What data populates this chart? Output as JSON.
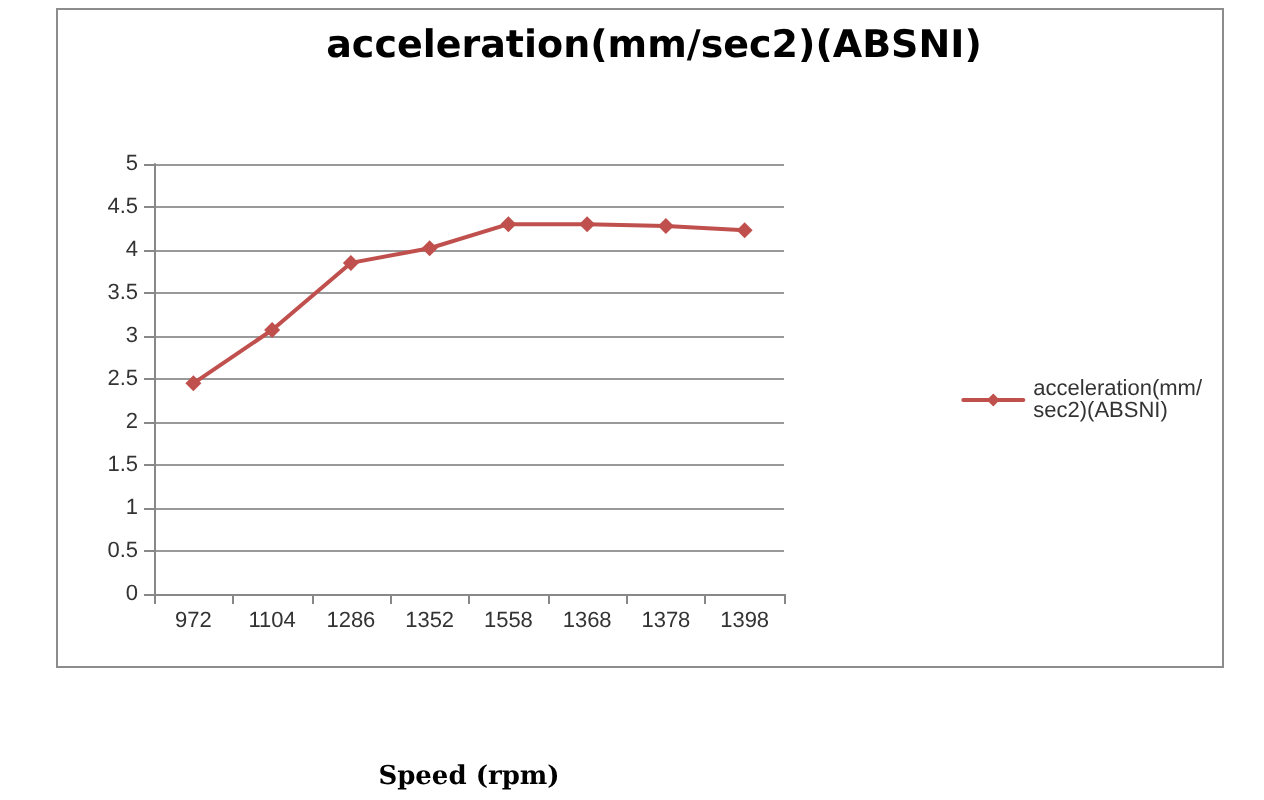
{
  "chart_data": {
    "type": "line",
    "title": "acceleration(mm/sec2)(ABSNI)",
    "xlabel": "Speed (rpm)",
    "categories": [
      "972",
      "1104",
      "1286",
      "1352",
      "1558",
      "1368",
      "1378",
      "1398"
    ],
    "series": [
      {
        "name": "acceleration(mm/sec2)(ABSNI)",
        "color": "#c0504d",
        "values": [
          2.45,
          3.07,
          3.85,
          4.02,
          4.3,
          4.3,
          4.28,
          4.23
        ]
      }
    ],
    "ylim": [
      0,
      5
    ],
    "yticks": [
      0,
      0.5,
      1,
      1.5,
      2,
      2.5,
      3,
      3.5,
      4,
      4.5,
      5
    ],
    "grid": "y",
    "legend": "right",
    "marker": "diamond",
    "line_style": "solid"
  }
}
